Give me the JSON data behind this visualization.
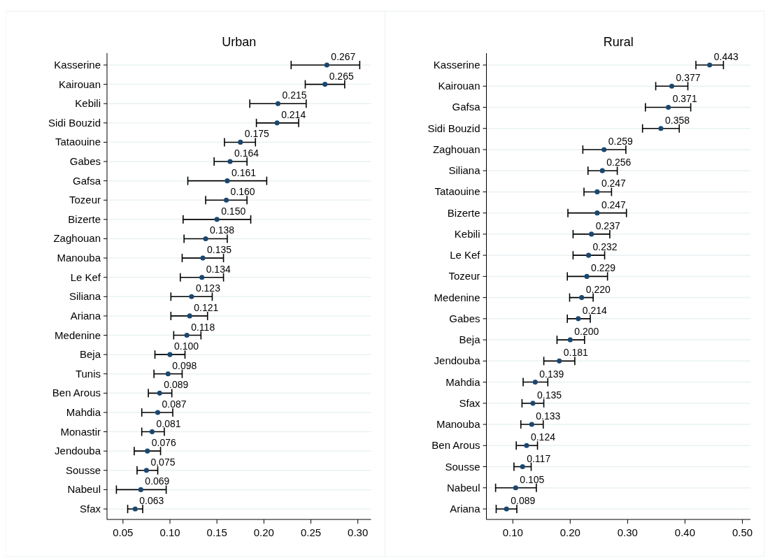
{
  "chart_data": [
    {
      "type": "scatter",
      "orientation": "horizontal",
      "title": "Urban",
      "grid": "y",
      "marker": "circle",
      "categories": [
        "Kasserine",
        "Kairouan",
        "Kebili",
        "Sidi Bouzid",
        "Tataouine",
        "Gabes",
        "Gafsa",
        "Tozeur",
        "Bizerte",
        "Zaghouan",
        "Manouba",
        "Le Kef",
        "Siliana",
        "Ariana",
        "Medenine",
        "Beja",
        "Tunis",
        "Ben Arous",
        "Mahdia",
        "Monastir",
        "Jendouba",
        "Sousse",
        "Nabeul",
        "Sfax"
      ],
      "series": [
        {
          "color": "#1a476f",
          "values": [
            0.267,
            0.265,
            0.215,
            0.214,
            0.175,
            0.164,
            0.161,
            0.16,
            0.15,
            0.138,
            0.135,
            0.134,
            0.123,
            0.121,
            0.118,
            0.1,
            0.098,
            0.089,
            0.087,
            0.081,
            0.076,
            0.075,
            0.069,
            0.063
          ],
          "value_labels": [
            "0.267",
            "0.265",
            "0.215",
            "0.214",
            "0.175",
            "0.164",
            "0.161",
            "0.160",
            "0.150",
            "0.138",
            "0.135",
            "0.134",
            "0.123",
            "0.121",
            "0.118",
            "0.100",
            "0.098",
            "0.089",
            "0.087",
            "0.081",
            "0.076",
            "0.075",
            "0.069",
            "0.063"
          ],
          "errors": [
            [
              0.229,
              0.302
            ],
            [
              0.244,
              0.286
            ],
            [
              0.185,
              0.245
            ],
            [
              0.192,
              0.237
            ],
            [
              0.158,
              0.191
            ],
            [
              0.147,
              0.182
            ],
            [
              0.119,
              0.203
            ],
            [
              0.138,
              0.182
            ],
            [
              0.114,
              0.186
            ],
            [
              0.115,
              0.161
            ],
            [
              0.113,
              0.157
            ],
            [
              0.111,
              0.157
            ],
            [
              0.101,
              0.145
            ],
            [
              0.101,
              0.14
            ],
            [
              0.104,
              0.133
            ],
            [
              0.084,
              0.116
            ],
            [
              0.083,
              0.113
            ],
            [
              0.077,
              0.102
            ],
            [
              0.07,
              0.103
            ],
            [
              0.07,
              0.094
            ],
            [
              0.062,
              0.09
            ],
            [
              0.065,
              0.087
            ],
            [
              0.043,
              0.096
            ],
            [
              0.055,
              0.071
            ]
          ]
        }
      ],
      "xlim": [
        0.033,
        0.314
      ],
      "xticks": [
        {
          "value": 0.05,
          "label": "0.05"
        },
        {
          "value": 0.1,
          "label": "0.10"
        },
        {
          "value": 0.15,
          "label": "0.15"
        },
        {
          "value": 0.2,
          "label": "0.20"
        },
        {
          "value": 0.25,
          "label": "0.25"
        },
        {
          "value": 0.3,
          "label": "0.30"
        }
      ]
    },
    {
      "type": "scatter",
      "orientation": "horizontal",
      "title": "Rural",
      "grid": "y",
      "marker": "circle",
      "categories": [
        "Kasserine",
        "Kairouan",
        "Gafsa",
        "Sidi Bouzid",
        "Zaghouan",
        "Siliana",
        "Tataouine",
        "Bizerte",
        "Kebili",
        "Le Kef",
        "Tozeur",
        "Medenine",
        "Gabes",
        "Beja",
        "Jendouba",
        "Mahdia",
        "Sfax",
        "Manouba",
        "Ben Arous",
        "Sousse",
        "Nabeul",
        "Ariana"
      ],
      "series": [
        {
          "color": "#1a476f",
          "values": [
            0.443,
            0.377,
            0.371,
            0.358,
            0.259,
            0.256,
            0.247,
            0.247,
            0.237,
            0.232,
            0.229,
            0.22,
            0.214,
            0.2,
            0.181,
            0.139,
            0.135,
            0.133,
            0.124,
            0.117,
            0.105,
            0.089
          ],
          "value_labels": [
            "0.443",
            "0.377",
            "0.371",
            "0.358",
            "0.259",
            "0.256",
            "0.247",
            "0.247",
            "0.237",
            "0.232",
            "0.229",
            "0.220",
            "0.214",
            "0.200",
            "0.181",
            "0.139",
            "0.135",
            "0.133",
            "0.124",
            "0.117",
            "0.105",
            "0.089"
          ],
          "errors": [
            [
              0.419,
              0.467
            ],
            [
              0.349,
              0.405
            ],
            [
              0.331,
              0.41
            ],
            [
              0.326,
              0.39
            ],
            [
              0.222,
              0.297
            ],
            [
              0.231,
              0.282
            ],
            [
              0.224,
              0.272
            ],
            [
              0.196,
              0.298
            ],
            [
              0.205,
              0.269
            ],
            [
              0.205,
              0.26
            ],
            [
              0.195,
              0.265
            ],
            [
              0.199,
              0.24
            ],
            [
              0.195,
              0.235
            ],
            [
              0.177,
              0.225
            ],
            [
              0.154,
              0.208
            ],
            [
              0.118,
              0.161
            ],
            [
              0.116,
              0.154
            ],
            [
              0.114,
              0.153
            ],
            [
              0.106,
              0.143
            ],
            [
              0.102,
              0.132
            ],
            [
              0.07,
              0.141
            ],
            [
              0.071,
              0.107
            ]
          ]
        }
      ],
      "xlim": [
        0.054,
        0.514
      ],
      "xticks": [
        {
          "value": 0.1,
          "label": "0.10"
        },
        {
          "value": 0.2,
          "label": "0.20"
        },
        {
          "value": 0.3,
          "label": "0.30"
        },
        {
          "value": 0.4,
          "label": "0.40"
        },
        {
          "value": 0.5,
          "label": "0.50"
        }
      ]
    }
  ]
}
